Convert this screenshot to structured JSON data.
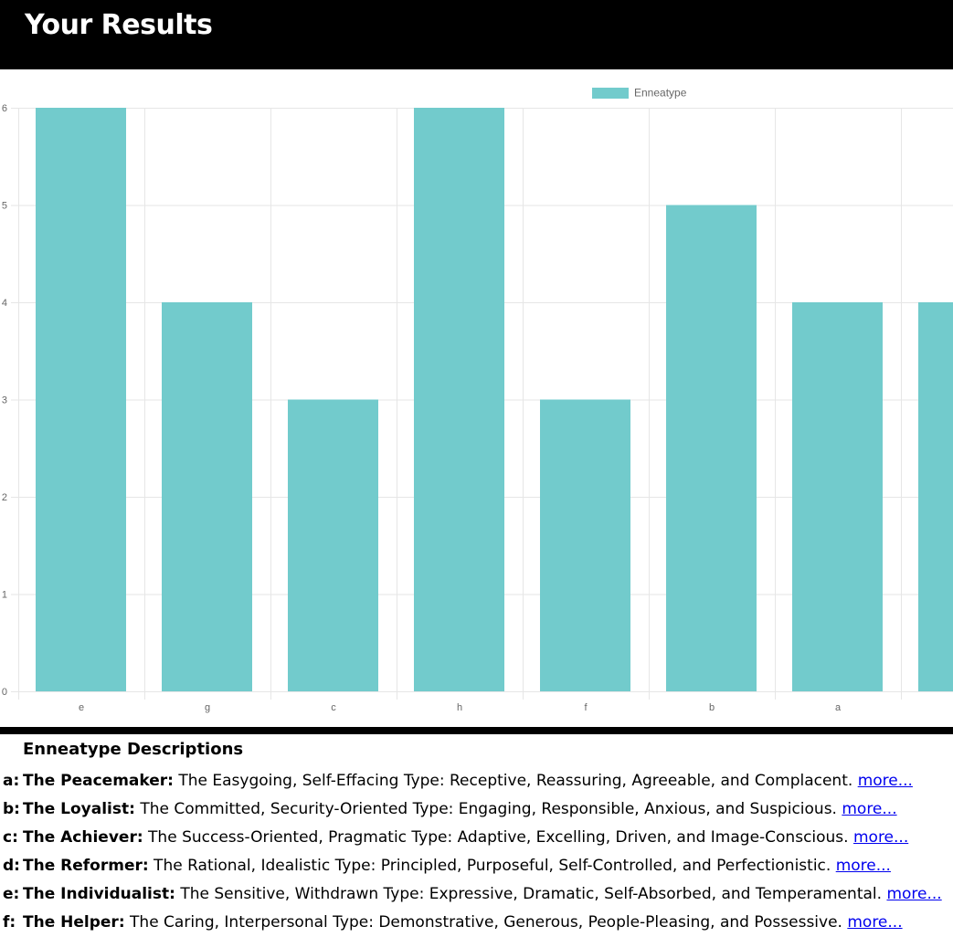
{
  "header": {
    "title": "Your Results"
  },
  "chart_data": {
    "type": "bar",
    "categories": [
      "e",
      "g",
      "c",
      "h",
      "f",
      "b",
      "a",
      ""
    ],
    "series": [
      {
        "name": "Enneatype",
        "values": [
          6,
          4,
          3,
          6,
          3,
          5,
          4,
          4
        ]
      }
    ],
    "ylim": [
      0,
      6
    ],
    "yticks": [
      "0",
      "1",
      "2",
      "3",
      "4",
      "5",
      "6"
    ],
    "grid": true,
    "legend": "top-center",
    "bar_color": "#72cbcc",
    "grid_color": "#e6e6e6"
  },
  "descriptions": {
    "heading": "Enneatype Descriptions",
    "items": [
      {
        "key": "a:",
        "name": "The Peacemaker:",
        "text": " The Easygoing, Self-Effacing Type: Receptive, Reassuring, Agreeable, and Complacent. ",
        "link": "more..."
      },
      {
        "key": "b:",
        "name": "The Loyalist:",
        "text": " The Committed, Security-Oriented Type: Engaging, Responsible, Anxious, and Suspicious. ",
        "link": "more..."
      },
      {
        "key": "c:",
        "name": "The Achiever:",
        "text": " The Success-Oriented, Pragmatic Type: Adaptive, Excelling, Driven, and Image-Conscious. ",
        "link": "more..."
      },
      {
        "key": "d:",
        "name": "The Reformer:",
        "text": " The Rational, Idealistic Type: Principled, Purposeful, Self-Controlled, and Perfectionistic. ",
        "link": "more..."
      },
      {
        "key": "e:",
        "name": "The Individualist:",
        "text": " The Sensitive, Withdrawn Type: Expressive, Dramatic, Self-Absorbed, and Temperamental. ",
        "link": "more..."
      },
      {
        "key": "f:",
        "name": "The Helper:",
        "text": " The Caring, Interpersonal Type: Demonstrative, Generous, People-Pleasing, and Possessive. ",
        "link": "more..."
      }
    ]
  }
}
